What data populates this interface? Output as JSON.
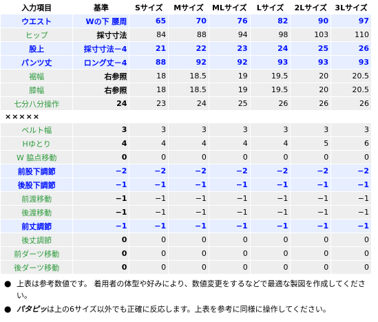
{
  "headers": [
    "入力項目",
    "基準",
    "Sサイズ",
    "Mサイズ",
    "MLサイズ",
    "Lサイズ",
    "2Lサイズ",
    "3Lサイズ"
  ],
  "rows": [
    {
      "style": "blue",
      "label": "ウエスト",
      "base": "Wの下 腰周",
      "values": [
        "65",
        "70",
        "76",
        "82",
        "90",
        "97"
      ]
    },
    {
      "style": "gray",
      "label": "ヒップ",
      "base": "採寸寸法",
      "values": [
        "84",
        "88",
        "94",
        "98",
        "103",
        "110"
      ]
    },
    {
      "style": "blue",
      "label": "股上",
      "base": "採寸寸法－4",
      "values": [
        "21",
        "22",
        "23",
        "24",
        "25",
        "26"
      ]
    },
    {
      "style": "blue",
      "label": "パンツ丈",
      "base": "ロング丈－4",
      "values": [
        "88",
        "92",
        "92",
        "93",
        "93",
        "93"
      ]
    },
    {
      "style": "gray",
      "label": "裾幅",
      "base": "右参照",
      "values": [
        "18",
        "18.5",
        "19",
        "19.5",
        "20",
        "20.5"
      ]
    },
    {
      "style": "gray",
      "label": "膝幅",
      "base": "右参照",
      "values": [
        "18",
        "18.5",
        "19",
        "19.5",
        "20",
        "20.5"
      ]
    },
    {
      "style": "gray",
      "label": "七分八分操作",
      "base": "24",
      "values": [
        "23",
        "24",
        "25",
        "26",
        "26",
        "26"
      ]
    }
  ],
  "separator": "×××××",
  "rows2": [
    {
      "style": "gray",
      "label": "ベルト幅",
      "base": "3",
      "values": [
        "3",
        "3",
        "3",
        "3",
        "3",
        "3"
      ]
    },
    {
      "style": "gray",
      "label": "Hゆとり",
      "base": "4",
      "values": [
        "4",
        "4",
        "4",
        "4",
        "5",
        "6"
      ]
    },
    {
      "style": "gray",
      "label": "W 脇点移動",
      "base": "0",
      "values": [
        "0",
        "0",
        "0",
        "0",
        "0",
        "0"
      ]
    },
    {
      "style": "blue",
      "label": "前股下調節",
      "base": "−2",
      "values": [
        "−2",
        "−2",
        "−2",
        "−2",
        "−2",
        "−2"
      ]
    },
    {
      "style": "blue",
      "label": "後股下調節",
      "base": "−1",
      "values": [
        "−1",
        "−1",
        "−1",
        "−1",
        "−1",
        "−1"
      ]
    },
    {
      "style": "gray",
      "label": "前渡移動",
      "base": "−1",
      "values": [
        "−1",
        "−1",
        "−1",
        "−1",
        "−1",
        "−1"
      ]
    },
    {
      "style": "gray",
      "label": "後渡移動",
      "base": "−1",
      "values": [
        "−1",
        "−1",
        "−1",
        "−1",
        "−1",
        "−1"
      ]
    },
    {
      "style": "blue",
      "label": "前丈調節",
      "base": "−1",
      "values": [
        "−1",
        "−1",
        "−1",
        "−1",
        "−1",
        "−1"
      ]
    },
    {
      "style": "gray",
      "label": "後丈調節",
      "base": "0",
      "values": [
        "0",
        "0",
        "0",
        "0",
        "0",
        "0"
      ]
    },
    {
      "style": "gray",
      "label": "前ダーツ移動",
      "base": "0",
      "values": [
        "0",
        "0",
        "0",
        "0",
        "0",
        "0"
      ]
    },
    {
      "style": "gray",
      "label": "後ダーツ移動",
      "base": "0",
      "values": [
        "0",
        "0",
        "0",
        "0",
        "0",
        "0"
      ]
    }
  ],
  "notes": {
    "note1": "上表は参考数値です。 着用者の体型や好みにより、数値変更をするなどで最適な製図を作成してください。",
    "note2_brand": "パタピッ",
    "note2_text": "は上の6サイズ以外でも正確に反応します。上表を参考に同様に操作してください。"
  }
}
